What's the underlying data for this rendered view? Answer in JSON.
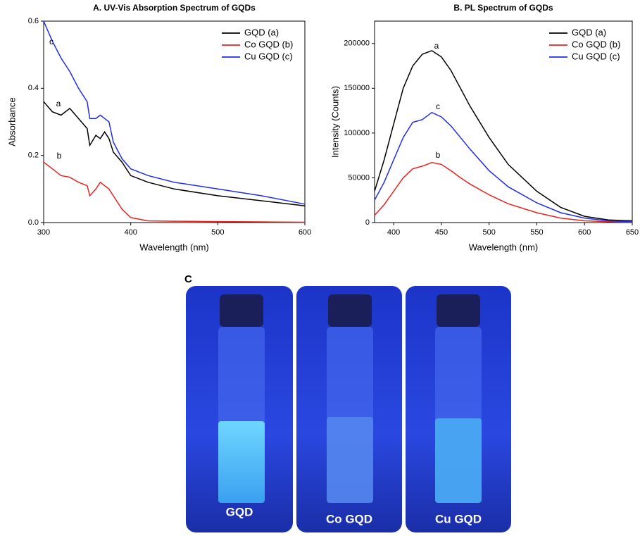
{
  "chart_data": [
    {
      "type": "line",
      "title": "A. UV-Vis Absorption Spectrum of GQDs",
      "x_label": "Wavelength (nm)",
      "y_label": "Absorbance",
      "x": [
        300,
        310,
        320,
        330,
        340,
        350,
        353,
        360,
        365,
        370,
        375,
        380,
        390,
        400,
        420,
        450,
        500,
        550,
        600
      ],
      "series": [
        {
          "name": "GQD (a)",
          "color": "#000000",
          "values": [
            0.36,
            0.33,
            0.32,
            0.34,
            0.31,
            0.28,
            0.23,
            0.26,
            0.25,
            0.27,
            0.25,
            0.21,
            0.18,
            0.14,
            0.12,
            0.1,
            0.08,
            0.065,
            0.05
          ]
        },
        {
          "name": "Co GQD (b)",
          "color": "#e8231f",
          "values": [
            0.18,
            0.16,
            0.14,
            0.135,
            0.12,
            0.11,
            0.08,
            0.1,
            0.12,
            0.11,
            0.1,
            0.08,
            0.04,
            0.015,
            0.005,
            0.004,
            0.003,
            0.002,
            0.001
          ]
        },
        {
          "name": "Cu GQD (c)",
          "color": "#1f2de8",
          "values": [
            0.6,
            0.54,
            0.49,
            0.45,
            0.4,
            0.36,
            0.31,
            0.31,
            0.32,
            0.31,
            0.3,
            0.24,
            0.19,
            0.16,
            0.14,
            0.12,
            0.1,
            0.08,
            0.055
          ]
        }
      ],
      "annotations": [
        "a",
        "b",
        "c"
      ],
      "xlim": [
        300,
        600
      ],
      "xticks": [
        300,
        400,
        500,
        600
      ],
      "ylim": [
        0,
        0.6
      ],
      "yticks": [
        {
          "value": 0,
          "label": "0.0"
        },
        0.2,
        0.4,
        0.6
      ],
      "legend": "upper right"
    },
    {
      "type": "line",
      "title": "B. PL Spectrum of GQDs",
      "x_label": "Wavelength (nm)",
      "y_label": "Intensity (Counts)",
      "x": [
        380,
        390,
        400,
        410,
        420,
        430,
        440,
        450,
        460,
        470,
        480,
        500,
        520,
        550,
        575,
        600,
        625,
        650
      ],
      "series": [
        {
          "name": "GQD (a)",
          "color": "#000000",
          "values": [
            35000,
            70000,
            110000,
            150000,
            175000,
            188000,
            192000,
            185000,
            170000,
            150000,
            130000,
            95000,
            65000,
            35000,
            17000,
            7000,
            3000,
            2000
          ]
        },
        {
          "name": "Co GQD (b)",
          "color": "#e8231f",
          "values": [
            8000,
            20000,
            35000,
            50000,
            60000,
            63000,
            67000,
            65000,
            58000,
            50000,
            43000,
            31000,
            21000,
            11000,
            5000,
            2000,
            1000,
            500
          ]
        },
        {
          "name": "Cu GQD (c)",
          "color": "#1f2de8",
          "values": [
            25000,
            45000,
            70000,
            95000,
            112000,
            115000,
            123000,
            118000,
            108000,
            95000,
            82000,
            58000,
            40000,
            22000,
            11000,
            5000,
            2000,
            1000
          ]
        }
      ],
      "annotations": [
        "a",
        "b",
        "c"
      ],
      "xlim": [
        380,
        650
      ],
      "xticks": [
        400,
        450,
        500,
        550,
        600,
        650
      ],
      "ylim": [
        0,
        225000
      ],
      "yticks": [
        0,
        50000,
        100000,
        150000,
        200000
      ],
      "legend": "upper right"
    }
  ],
  "panel_c": {
    "label": "C",
    "vials": [
      "GQD",
      "Co GQD",
      "Cu GQD"
    ]
  }
}
